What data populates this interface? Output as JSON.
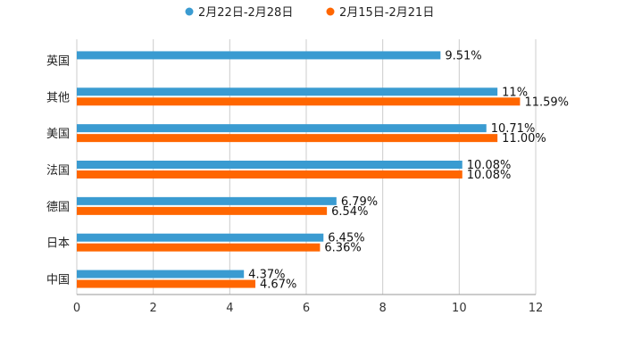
{
  "chart_data": {
    "type": "bar",
    "orientation": "horizontal",
    "categories": [
      "英国",
      "其他",
      "美国",
      "法国",
      "德国",
      "日本",
      "中国"
    ],
    "series": [
      {
        "name": "2月22日-2月28日",
        "color": "#3a9bd1",
        "values": [
          9.51,
          11,
          10.71,
          10.08,
          6.79,
          6.45,
          4.37
        ],
        "labels": [
          "9.51%",
          "11%",
          "10.71%",
          "10.08%",
          "6.79%",
          "6.45%",
          "4.37%"
        ]
      },
      {
        "name": "2月15日-2月21日",
        "color": "#ff6600",
        "values": [
          null,
          11.59,
          11.0,
          10.08,
          6.54,
          6.36,
          4.67
        ],
        "labels": [
          null,
          "11.59%",
          "11.00%",
          "10.08%",
          "6.54%",
          "6.36%",
          "4.67%"
        ]
      }
    ],
    "xlim": [
      0,
      12
    ],
    "xticks": [
      "0",
      "2",
      "4",
      "6",
      "8",
      "10",
      "12"
    ],
    "grid": true,
    "legend_position": "top-center",
    "title": "",
    "xlabel": "",
    "ylabel": ""
  }
}
